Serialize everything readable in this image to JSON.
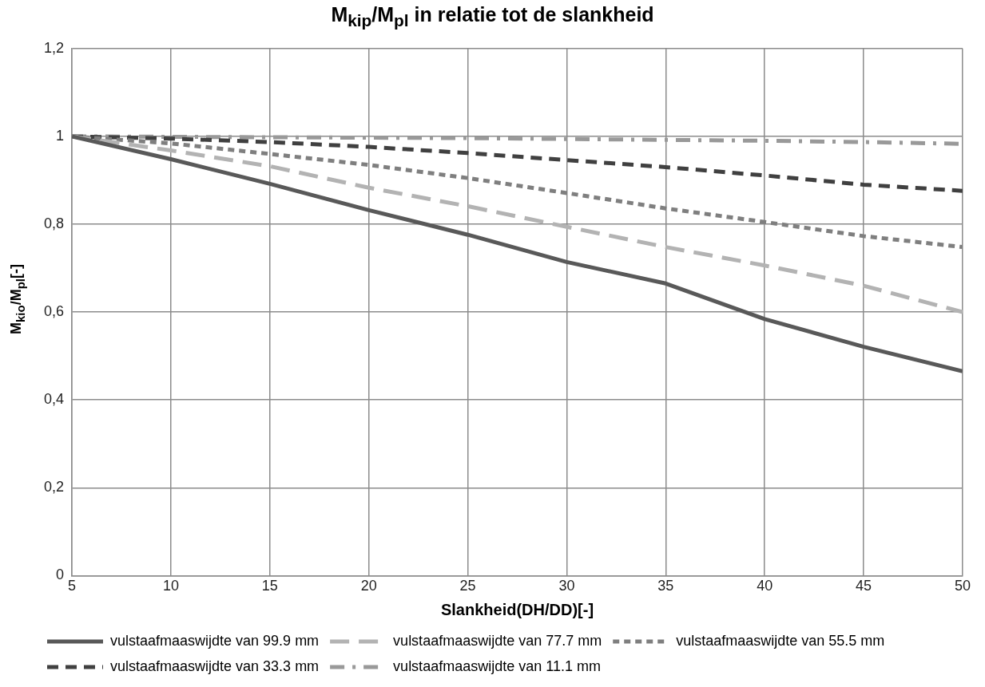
{
  "chart_data": {
    "type": "line",
    "title": "M$_{kip}$/M$_{pl}$  in relatie tot de slankheid",
    "xlabel": "Slankheid(DH/DD)[-]",
    "ylabel": "M$_{kio}$/M$_{pl}$[-]",
    "x": [
      5,
      10,
      15,
      20,
      25,
      30,
      35,
      40,
      45,
      50
    ],
    "xlim": [
      5,
      50
    ],
    "xticks": [
      5,
      10,
      15,
      20,
      25,
      30,
      35,
      40,
      45,
      50
    ],
    "ylim": [
      0,
      1.2
    ],
    "yticks": [
      0,
      {
        "value": 0.2,
        "label": "0,2"
      },
      {
        "value": 0.4,
        "label": "0,4"
      },
      {
        "value": 0.6,
        "label": "0,6"
      },
      {
        "value": 0.8,
        "label": "0,8"
      },
      1,
      {
        "value": 1.2,
        "label": "1,2"
      }
    ],
    "grid": true,
    "legend": "bottom",
    "marker": "none",
    "series": [
      {
        "name": "vulstaafmaaswijdte van 99.9 mm",
        "color": "#595959",
        "line_style": "solid",
        "values": [
          1.0,
          0.948,
          0.892,
          0.832,
          0.776,
          0.714,
          0.665,
          0.584,
          0.521,
          0.465
        ]
      },
      {
        "name": "vulstaafmaaswijdte van 77.7 mm",
        "color": "#b3b3b3",
        "line_style": "dashed",
        "values": [
          1.0,
          0.968,
          0.932,
          0.883,
          0.841,
          0.794,
          0.748,
          0.706,
          0.66,
          0.6
        ]
      },
      {
        "name": "vulstaafmaaswijdte van 55.5 mm",
        "color": "#7f7f7f",
        "line_style": "dotted",
        "values": [
          1.0,
          0.984,
          0.96,
          0.935,
          0.905,
          0.871,
          0.836,
          0.805,
          0.773,
          0.748
        ]
      },
      {
        "name": "vulstaafmaaswijdte van 33.3 mm",
        "color": "#404040",
        "line_style": "dashed",
        "values": [
          1.0,
          0.995,
          0.987,
          0.976,
          0.962,
          0.946,
          0.93,
          0.911,
          0.89,
          0.876
        ]
      },
      {
        "name": "vulstaafmaaswijdte van 11.1 mm",
        "color": "#999999",
        "line_style": "dashdot",
        "values": [
          1.0,
          0.999,
          0.998,
          0.997,
          0.996,
          0.994,
          0.992,
          0.99,
          0.987,
          0.983
        ]
      }
    ]
  }
}
